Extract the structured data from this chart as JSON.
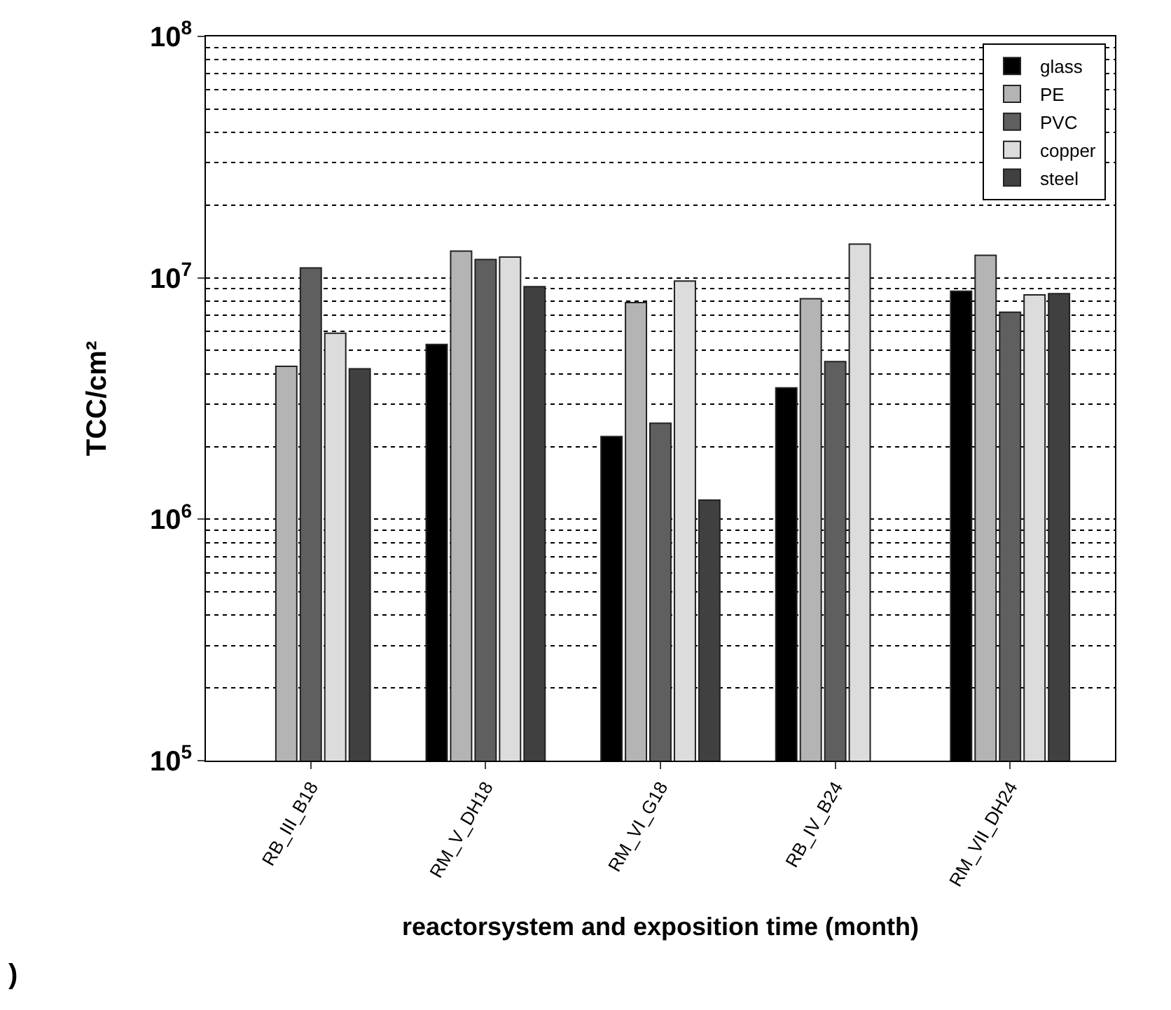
{
  "chart_data": {
    "type": "bar",
    "xlabel": "reactorsystem and exposition time (month)",
    "ylabel": "TCC/cm²",
    "log": true,
    "grid": "y",
    "legend": "top right",
    "categories": [
      "RB_III_B18",
      "RM_V_DH18",
      "RM_VI_G18",
      "RB_IV_B24",
      "RM_VII_DH24"
    ],
    "ylim": [
      100000,
      100000000
    ],
    "yticks": [
      {
        "value": 100000,
        "label": "10$^{5}$"
      },
      {
        "value": 1000000,
        "label": "10$^{6}$"
      },
      {
        "value": 10000000,
        "label": "10$^{7}$"
      },
      {
        "value": 100000000,
        "label": "10$^{8}$"
      }
    ],
    "series": [
      {
        "name": "glass",
        "color": "#000000",
        "values": [
          null,
          5300000,
          2200000,
          3500000,
          8800000
        ]
      },
      {
        "name": "PE",
        "color": "#b4b4b4",
        "values": [
          4300000,
          12900000,
          7900000,
          8200000,
          12400000
        ]
      },
      {
        "name": "PVC",
        "color": "#5f5f5f",
        "values": [
          11000000,
          11900000,
          2500000,
          4500000,
          7200000
        ]
      },
      {
        "name": "copper",
        "color": "#dcdcdc",
        "values": [
          5900000,
          12200000,
          9700000,
          13800000,
          8500000
        ]
      },
      {
        "name": "steel",
        "color": "#404040",
        "values": [
          4200000,
          9200000,
          1200000,
          null,
          8600000
        ]
      }
    ],
    "annotations": [
      ")"
    ]
  }
}
